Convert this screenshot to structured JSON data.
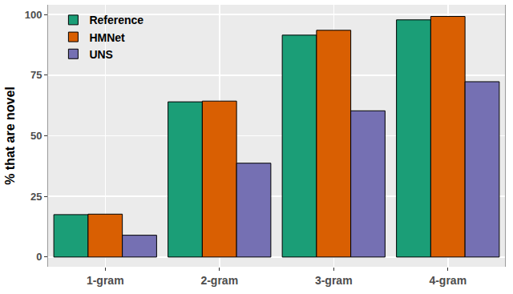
{
  "chart_data": {
    "type": "bar",
    "y_label": "% that are novel",
    "categories": [
      "1-gram",
      "2-gram",
      "3-gram",
      "4-gram"
    ],
    "series": [
      {
        "name": "Reference",
        "color": "#1b9e77",
        "values": [
          17.5,
          64,
          91.5,
          97.8
        ]
      },
      {
        "name": "HMNet",
        "color": "#d95f02",
        "values": [
          17.7,
          64.3,
          93.5,
          99.2
        ]
      },
      {
        "name": "UNS",
        "color": "#7570b3",
        "values": [
          9,
          38.7,
          60.3,
          72.3
        ]
      }
    ],
    "ylim": [
      -4,
      104
    ],
    "yticks": [
      0,
      25,
      50,
      75,
      100
    ],
    "grid": true,
    "legend": "top-left"
  }
}
